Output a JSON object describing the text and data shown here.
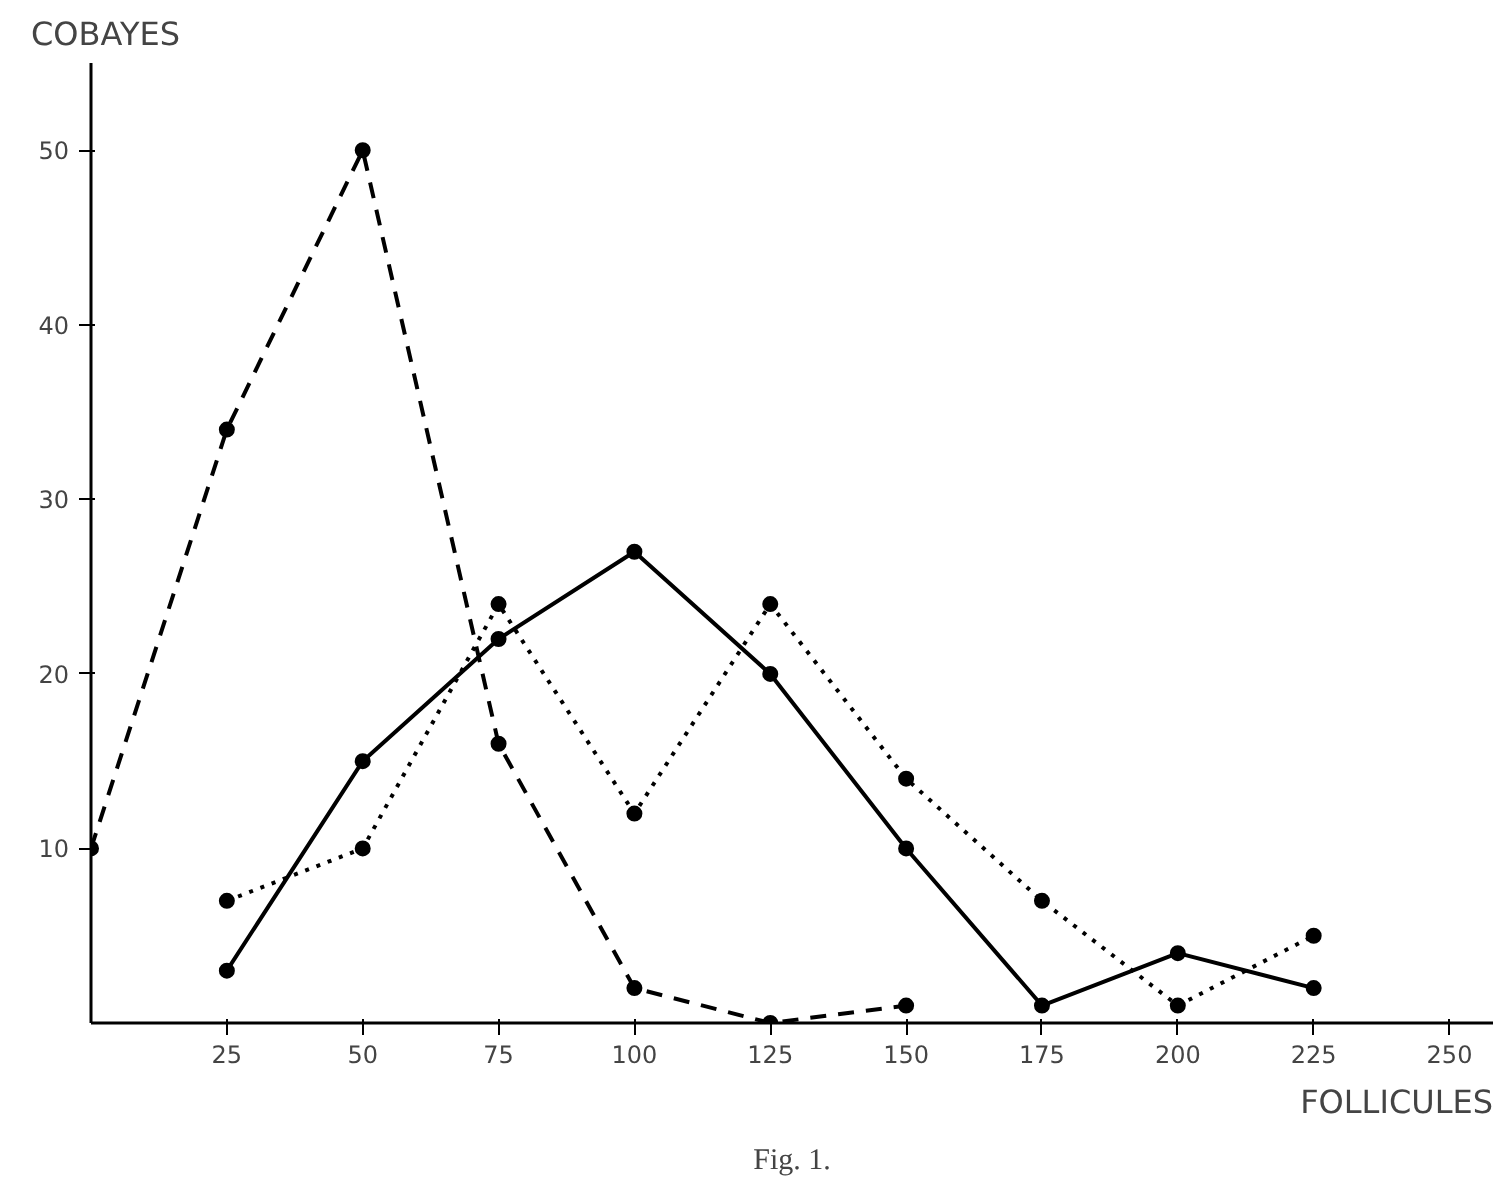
{
  "chart_data": {
    "type": "line",
    "xlabel": "FOLLICULES",
    "ylabel": "COBAYES",
    "annotations": [
      "Fig. 1."
    ],
    "xlim": [
      0,
      258
    ],
    "ylim": [
      0,
      55
    ],
    "xticks": [
      25,
      50,
      75,
      100,
      125,
      150,
      175,
      200,
      225,
      250
    ],
    "yticks": [
      10,
      20,
      30,
      40,
      50
    ],
    "grid": false,
    "marker": "circle",
    "series": [
      {
        "color": "#000000",
        "line_style": "dashed",
        "x": [
          0,
          25,
          50,
          75,
          100,
          125,
          150
        ],
        "values": [
          10,
          34,
          50,
          16,
          2,
          0,
          1
        ]
      },
      {
        "color": "#000000",
        "line_style": "solid",
        "x": [
          25,
          50,
          75,
          100,
          125,
          150,
          175,
          200,
          225
        ],
        "values": [
          3,
          15,
          22,
          27,
          20,
          10,
          1,
          4,
          2
        ]
      },
      {
        "color": "#000000",
        "line_style": "dotted",
        "x": [
          25,
          50,
          75,
          100,
          125,
          150,
          175,
          200,
          225
        ],
        "values": [
          7,
          10,
          24,
          12,
          24,
          14,
          7,
          1,
          5
        ]
      }
    ]
  }
}
